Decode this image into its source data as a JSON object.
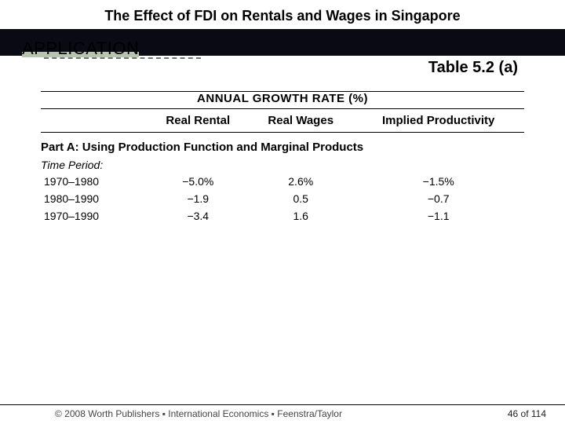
{
  "header": {
    "title": "The Effect of FDI on Rentals and Wages in Singapore"
  },
  "application": {
    "label": "APPLICATION",
    "table_label": "Table 5.2 (a)"
  },
  "table": {
    "super_header": "ANNUAL GROWTH RATE (%)",
    "columns": [
      "",
      "Real Rental",
      "Real Wages",
      "Implied Productivity"
    ],
    "part_label": "Part A: Using Production Function and Marginal Products",
    "period_label": "Time Period:",
    "rows": [
      {
        "period": "1970–1980",
        "rental": "−5.0%",
        "wages": "2.6%",
        "prod": "−1.5%"
      },
      {
        "period": "1980–1990",
        "rental": "−1.9",
        "wages": "0.5",
        "prod": "−0.7"
      },
      {
        "period": "1970–1990",
        "rental": "−3.4",
        "wages": "1.6",
        "prod": "−1.1"
      }
    ]
  },
  "footer": {
    "copyright": "© 2008 Worth Publishers ▪ International Economics ▪ Feenstra/Taylor",
    "page": "46 of 114"
  }
}
